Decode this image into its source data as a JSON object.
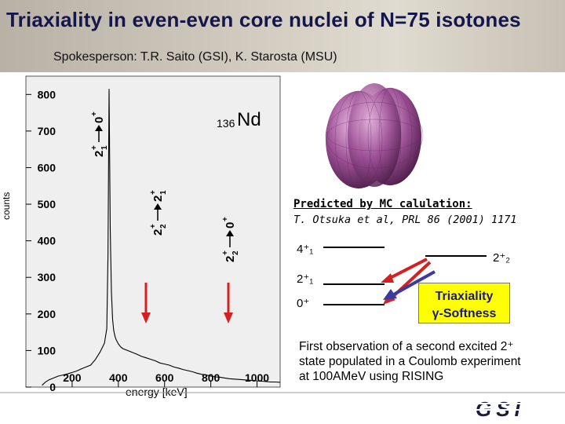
{
  "slide": {
    "title": "Triaxiality in even-even core nuclei of  N=75 isotones",
    "subtitle": "Spokesperson: T.R. Saito (GSI), K. Starosta (MSU)"
  },
  "plot": {
    "nucleus_mass": "136",
    "nucleus_symbol": "Nd",
    "annotations": {
      "t1": {
        "main": "2",
        "sub": "1",
        "sup": "+",
        "target": "0",
        "target_sup": "+"
      },
      "t2": {
        "main": "2",
        "sub": "2",
        "sup": "+",
        "target": "2",
        "target_sub": "1",
        "target_sup": "+"
      },
      "t3": {
        "main": "2",
        "sub": "2",
        "sup": "+",
        "target": "0",
        "target_sup": "+"
      }
    }
  },
  "chart_data": {
    "type": "line",
    "xlabel": "energy [keV]",
    "ylabel": "counts",
    "xlim": [
      0,
      1100
    ],
    "ylim": [
      0,
      850
    ],
    "xticks": [
      "200",
      "400",
      "600",
      "800",
      "1000"
    ],
    "xtick_values": [
      200,
      400,
      600,
      800,
      1000
    ],
    "yticks": [
      "0",
      "100",
      "200",
      "300",
      "400",
      "500",
      "600",
      "700",
      "800"
    ],
    "ytick_values": [
      0,
      100,
      200,
      300,
      400,
      500,
      600,
      700,
      800
    ],
    "series": [
      {
        "x": [
          70,
          85,
          100,
          120,
          140,
          160,
          180,
          200,
          220,
          240,
          260,
          280,
          300,
          320,
          340,
          350,
          355,
          360,
          365,
          370,
          375,
          380,
          385,
          390,
          400,
          410,
          420,
          440,
          460,
          480,
          500,
          520,
          540,
          560,
          580,
          600,
          620,
          640,
          660,
          680,
          700,
          720,
          740,
          760,
          780,
          800,
          820,
          840,
          860,
          880,
          900,
          920,
          940,
          960,
          980,
          1000,
          1020,
          1040,
          1060,
          1080,
          1100
        ],
        "y": [
          5,
          14,
          20,
          25,
          30,
          33,
          36,
          40,
          44,
          50,
          55,
          60,
          75,
          95,
          120,
          160,
          360,
          815,
          430,
          260,
          185,
          155,
          140,
          130,
          118,
          110,
          105,
          100,
          95,
          90,
          84,
          80,
          76,
          72,
          66,
          63,
          60,
          55,
          52,
          48,
          45,
          42,
          38,
          35,
          33,
          30,
          28,
          27,
          25,
          23,
          22,
          21,
          20,
          19,
          18,
          17,
          16,
          15,
          14,
          14,
          13
        ]
      }
    ]
  },
  "levels": {
    "l4": "4⁺₁",
    "l2a": "2⁺₁",
    "l0": "0⁺",
    "l2b": "2⁺₂"
  },
  "prediction": {
    "title": "Predicted by MC calulation:",
    "ref": "T. Otsuka et al, PRL 86 (2001) 1171"
  },
  "highlight": {
    "line1": "Triaxiality",
    "line2": "γ-Softness"
  },
  "observation": {
    "line1": "First observation of a second excited 2⁺",
    "line2": "state populated in a Coulomb experiment",
    "line3": "at 100AMeV using RISING"
  },
  "logo": {
    "text": "GSI"
  },
  "colors": {
    "title": "#16164e",
    "red_arrow": "#d42020",
    "blue_arrow": "#3a3aa0",
    "box": "#ffff00"
  }
}
